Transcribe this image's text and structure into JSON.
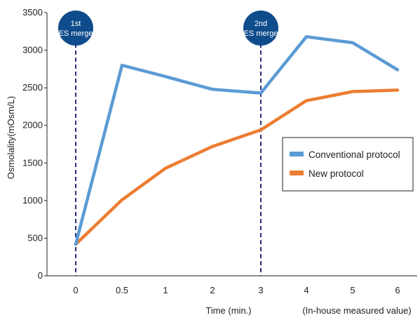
{
  "chart_data": {
    "type": "line",
    "categories": [
      "0",
      "0.5",
      "1",
      "2",
      "3",
      "4",
      "5",
      "6"
    ],
    "series": [
      {
        "name": "Conventional protocol",
        "color": "#5b9bd5",
        "values": [
          420,
          2800,
          2650,
          2480,
          2430,
          3180,
          3100,
          2740
        ]
      },
      {
        "name": "New protocol",
        "color": "#ed7d31",
        "values": [
          420,
          1010,
          1430,
          1720,
          1940,
          2330,
          2450,
          2470
        ]
      }
    ],
    "ylim": [
      0,
      3500
    ],
    "yticks": [
      "0",
      "500",
      "1000",
      "1500",
      "2000",
      "2500",
      "3000",
      "3500"
    ],
    "xlabel": "Time (min.)",
    "ylabel": "Osmolality(mOsm/L)",
    "note": "(In-house measured value)",
    "legend_position": "right",
    "markers": [
      {
        "category_index": 0,
        "line1": "1st",
        "line2": "ES merge",
        "color": "#0f4c8c"
      },
      {
        "category_index": 4,
        "line1": "2nd",
        "line2": "ES merge",
        "color": "#0f4c8c"
      }
    ],
    "grid": false
  }
}
